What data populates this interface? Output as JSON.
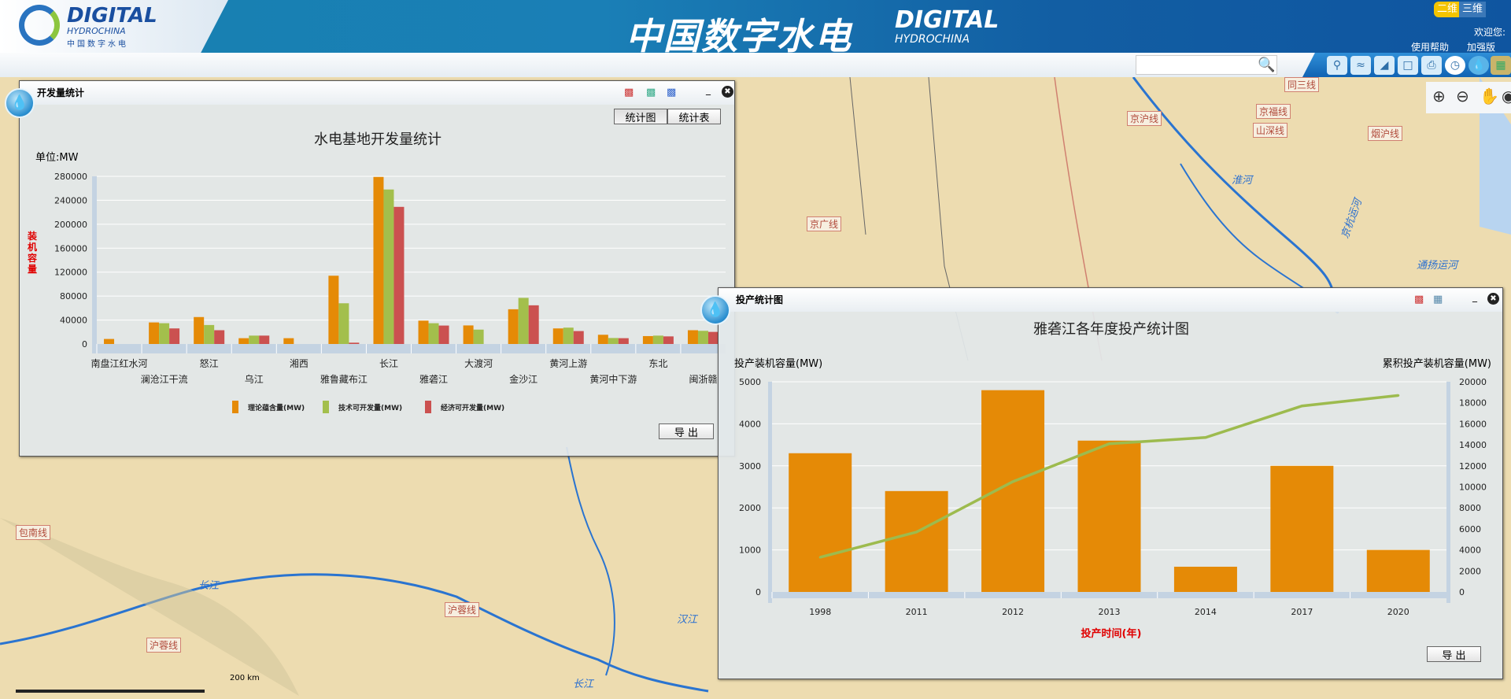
{
  "header": {
    "logo_en": "DIGITAL",
    "logo_en2": "HYDROCHINA",
    "logo_cn": "中国数字水电",
    "title_cn": "中国数字水电",
    "title_en": "DIGITAL",
    "title_en2": "HYDROCHINA",
    "mode_2d": "二维",
    "mode_3d": "三维",
    "welcome": "欢迎您:",
    "help": "使用帮助",
    "enhanced": "加强版"
  },
  "toolbar": {
    "search_placeholder": "",
    "tools": [
      "search-icon",
      "rss-icon",
      "ruler-icon",
      "comment-icon",
      "print-icon",
      "compass-icon",
      "water-drop-icon",
      "map-icon"
    ]
  },
  "map": {
    "labels": [
      "同三线",
      "京福线",
      "京沪线",
      "山深线",
      "烟沪线",
      "京广线",
      "包南线",
      "沪蓉线",
      "沪蓉线"
    ],
    "rivers": [
      "淮河",
      "京杭运河",
      "通扬运河",
      "长江",
      "汉江",
      "长江"
    ],
    "scale": "200 km"
  },
  "colors": {
    "orange": "#e58a06",
    "green": "#a3bf4c",
    "red": "#cb5150",
    "axis_red": "#e00000"
  },
  "window_dev": {
    "title": "开发量统计",
    "tab_chart": "统计图",
    "tab_table": "统计表",
    "export": "导 出"
  },
  "window_prod": {
    "title": "投产统计图",
    "export": "导 出"
  },
  "chart_data": [
    {
      "type": "bar",
      "title": "水电基地开发量统计",
      "unit": "单位:MW",
      "ylabel": "装机容量",
      "ylim": [
        0,
        280000
      ],
      "yticks": [
        0,
        40000,
        80000,
        120000,
        160000,
        200000,
        240000,
        280000
      ],
      "grid": true,
      "legend": "bottom",
      "categories": [
        "南盘江红水河",
        "澜沧江干流",
        "怒江",
        "乌江",
        "湘西",
        "雅鲁藏布江",
        "长江",
        "雅砻江",
        "大渡河",
        "金沙江",
        "黄河上游",
        "黄河中下游",
        "东北",
        "闽浙赣"
      ],
      "series": [
        {
          "name": "理论蕴含量(MW)",
          "color": "#e58a06",
          "values": [
            8400,
            36000,
            45000,
            9700,
            9700,
            114000,
            279000,
            39000,
            31000,
            58000,
            26000,
            15400,
            13200,
            23000
          ]
        },
        {
          "name": "技术可开发量(MW)",
          "color": "#a3bf4c",
          "values": [
            0,
            34700,
            31700,
            14000,
            0,
            68000,
            258000,
            34700,
            24000,
            77000,
            27300,
            10000,
            14000,
            22000
          ]
        },
        {
          "name": "经济可开发量(MW)",
          "color": "#cb5150",
          "values": [
            0,
            26000,
            23000,
            14000,
            0,
            2200,
            229000,
            30800,
            0,
            64600,
            21600,
            9700,
            12700,
            20200
          ]
        }
      ]
    },
    {
      "type": "bar",
      "title": "雅砻江各年度投产统计图",
      "ylabel": "投产装机容量(MW)",
      "y2label": "累积投产装机容量(MW)",
      "xlabel": "投产时间(年)",
      "ylim": [
        0,
        5000
      ],
      "yticks": [
        0,
        1000,
        2000,
        3000,
        4000,
        5000
      ],
      "y2lim": [
        0,
        20000
      ],
      "y2ticks": [
        0,
        2000,
        4000,
        6000,
        8000,
        10000,
        12000,
        14000,
        16000,
        18000,
        20000
      ],
      "grid": true,
      "categories": [
        "1998",
        "2011",
        "2012",
        "2013",
        "2014",
        "2017",
        "2020"
      ],
      "series": [
        {
          "type": "bar",
          "color": "#e58a06",
          "axis": "left",
          "values": [
            3300,
            2400,
            4800,
            3600,
            600,
            3000,
            1000
          ]
        },
        {
          "type": "line",
          "color": "#9dbb4e",
          "axis": "right",
          "values": [
            3300,
            5700,
            10500,
            14100,
            14700,
            17700,
            18700
          ]
        }
      ]
    }
  ]
}
